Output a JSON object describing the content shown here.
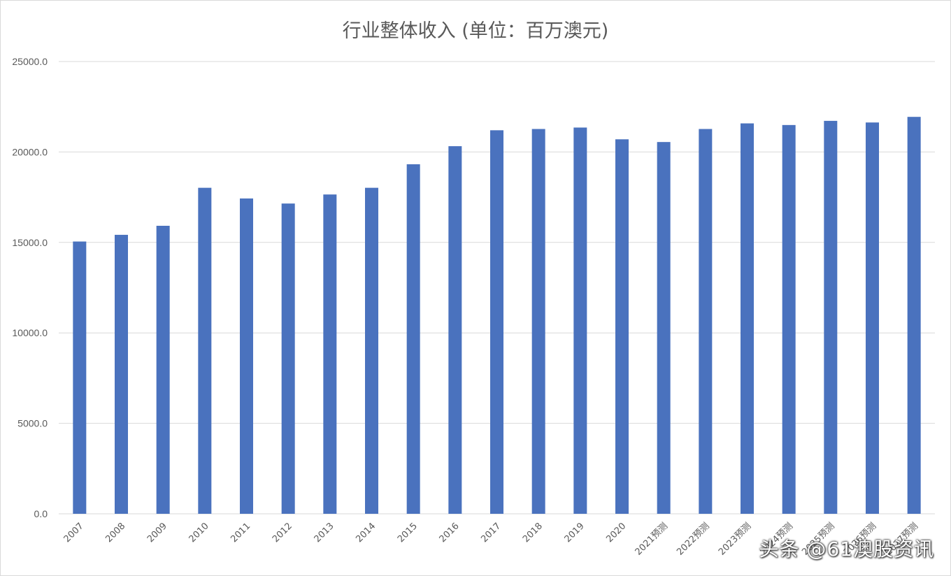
{
  "chart_data": {
    "type": "bar",
    "title": "行业整体收入 (单位：百万澳元)",
    "categories": [
      "2007",
      "2008",
      "2009",
      "2010",
      "2011",
      "2012",
      "2013",
      "2014",
      "2015",
      "2016",
      "2017",
      "2018",
      "2019",
      "2020",
      "2021预测",
      "2022预测",
      "2023预测",
      "2024预测",
      "2025预测",
      "2026预测",
      "2027预测"
    ],
    "values": [
      15050,
      15420,
      15920,
      18020,
      17430,
      17150,
      17650,
      18020,
      19320,
      20320,
      21200,
      21270,
      21350,
      20700,
      20550,
      21270,
      21580,
      21490,
      21720,
      21630,
      21940
    ],
    "ylim": [
      0,
      25000
    ],
    "yticks": [
      "0.0",
      "5000.0",
      "10000.0",
      "15000.0",
      "20000.0",
      "25000.0"
    ],
    "xlabel": "",
    "ylabel": "",
    "grid": true,
    "legend": "none",
    "bar_color": "#4a72be",
    "grid_color": "#d9d9d9",
    "tick_label_color": "#595959"
  },
  "watermark": "头条 @61澳股资讯"
}
